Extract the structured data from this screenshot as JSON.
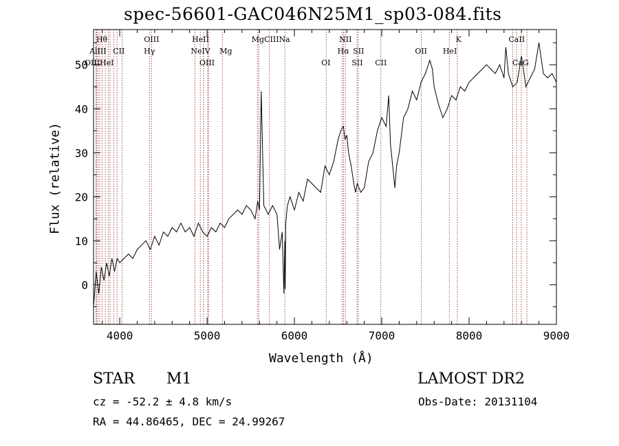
{
  "chart_data": {
    "type": "line",
    "title": "spec-56601-GAC046N25M1_sp03-084.fits",
    "xlabel": "Wavelength (Å)",
    "ylabel": "Flux (relative)",
    "xlim": [
      3700,
      9000
    ],
    "ylim": [
      -9,
      58
    ],
    "xticks": [
      4000,
      5000,
      6000,
      7000,
      8000,
      9000
    ],
    "yticks": [
      0,
      10,
      20,
      30,
      40,
      50
    ],
    "grid": false,
    "series": [
      {
        "name": "flux",
        "x": [
          3700,
          3730,
          3760,
          3790,
          3820,
          3850,
          3880,
          3910,
          3940,
          3970,
          4000,
          4050,
          4100,
          4150,
          4200,
          4250,
          4300,
          4350,
          4400,
          4450,
          4500,
          4550,
          4600,
          4650,
          4700,
          4750,
          4800,
          4850,
          4900,
          4950,
          5000,
          5050,
          5100,
          5150,
          5200,
          5250,
          5300,
          5350,
          5400,
          5450,
          5500,
          5550,
          5580,
          5600,
          5620,
          5650,
          5700,
          5750,
          5800,
          5830,
          5860,
          5880,
          5890,
          5895,
          5900,
          5920,
          5950,
          6000,
          6050,
          6100,
          6150,
          6200,
          6250,
          6300,
          6350,
          6400,
          6450,
          6500,
          6530,
          6560,
          6580,
          6600,
          6620,
          6650,
          6680,
          6700,
          6720,
          6740,
          6760,
          6800,
          6850,
          6900,
          6950,
          7000,
          7050,
          7080,
          7100,
          7120,
          7150,
          7170,
          7200,
          7250,
          7300,
          7350,
          7400,
          7450,
          7500,
          7550,
          7580,
          7600,
          7650,
          7700,
          7750,
          7800,
          7850,
          7900,
          7950,
          8000,
          8050,
          8100,
          8150,
          8200,
          8250,
          8300,
          8350,
          8400,
          8420,
          8450,
          8500,
          8550,
          8600,
          8650,
          8700,
          8750,
          8800,
          8850,
          8900,
          8950,
          9000
        ],
        "values": [
          -5,
          3,
          -2,
          4,
          1,
          5,
          2,
          6,
          3,
          6,
          5,
          6,
          7,
          6,
          8,
          9,
          10,
          8,
          11,
          9,
          12,
          11,
          13,
          12,
          14,
          12,
          13,
          11,
          14,
          12,
          11,
          13,
          12,
          14,
          13,
          15,
          16,
          17,
          16,
          18,
          17,
          15,
          19,
          17,
          44,
          18,
          16,
          18,
          16,
          8,
          12,
          -2,
          10,
          -1,
          14,
          18,
          20,
          17,
          21,
          19,
          24,
          23,
          22,
          21,
          27,
          25,
          28,
          33,
          35,
          36,
          33,
          34,
          30,
          27,
          23,
          21,
          23,
          22,
          21,
          22,
          28,
          30,
          35,
          38,
          36,
          43,
          32,
          28,
          22,
          27,
          30,
          38,
          40,
          44,
          42,
          46,
          48,
          51,
          49,
          45,
          41,
          38,
          40,
          43,
          42,
          45,
          44,
          46,
          47,
          48,
          49,
          50,
          49,
          48,
          50,
          47,
          54,
          48,
          45,
          46,
          52,
          45,
          47,
          49,
          55,
          48,
          47,
          48,
          46
        ]
      }
    ],
    "annotations": {
      "object_type": "STAR",
      "subclass": "M1",
      "survey": "LAMOST DR2",
      "cz": "cz = -52.2 ± 4.8 km/s",
      "obs_date": "Obs-Date: 20131104",
      "coords": "RA =  44.86465, DEC =  24.99267"
    },
    "line_markers": {
      "wavelengths": [
        3727,
        3734,
        3750,
        3771,
        3798,
        3835,
        3869,
        3889,
        3933,
        3969,
        4026,
        4340,
        4363,
        4861,
        4922,
        4959,
        5007,
        5016,
        5175,
        5577,
        5593,
        5713,
        5890,
        6364,
        6548,
        6563,
        6583,
        6717,
        6731,
        6990,
        7454,
        7774,
        7865,
        8500,
        8543,
        8598,
        8662
      ],
      "labels": [
        {
          "text": "Hθ",
          "x": 3795,
          "row": 1
        },
        {
          "text": "AlIII",
          "x": 3750,
          "row": 2
        },
        {
          "text": "CII",
          "x": 3990,
          "row": 2
        },
        {
          "text": "OIII",
          "x": 4365,
          "row": 1
        },
        {
          "text": "Hγ",
          "x": 4340,
          "row": 2
        },
        {
          "text": "HeII",
          "x": 4925,
          "row": 1
        },
        {
          "text": "NeIV",
          "x": 4925,
          "row": 2
        },
        {
          "text": "Mg",
          "x": 5215,
          "row": 2
        },
        {
          "text": "MgCIIINa",
          "x": 5730,
          "row": 1
        },
        {
          "text": "NII",
          "x": 6585,
          "row": 1
        },
        {
          "text": "Hα",
          "x": 6560,
          "row": 2
        },
        {
          "text": "SII",
          "x": 6735,
          "row": 2
        },
        {
          "text": "OII",
          "x": 7450,
          "row": 2
        },
        {
          "text": "HeI",
          "x": 7780,
          "row": 2
        },
        {
          "text": "K",
          "x": 7880,
          "row": 1
        },
        {
          "text": "CaII",
          "x": 8545,
          "row": 1
        },
        {
          "text": "OIIIHeI",
          "x": 3765,
          "row": 3
        },
        {
          "text": "OIII",
          "x": 5000,
          "row": 3
        },
        {
          "text": "OI",
          "x": 6360,
          "row": 3
        },
        {
          "text": "SII",
          "x": 6720,
          "row": 3
        },
        {
          "text": "CII",
          "x": 6990,
          "row": 3
        },
        {
          "text": "CaG",
          "x": 8590,
          "row": 3
        }
      ]
    }
  }
}
